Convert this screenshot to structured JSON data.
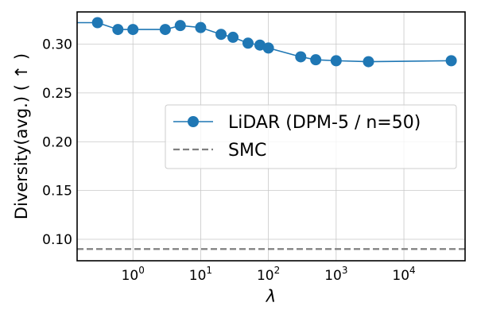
{
  "chart_data": {
    "type": "line",
    "xscale": "log",
    "xlabel": "λ",
    "ylabel": "Diversity(avg.) ( ↑ )",
    "xlim": [
      0.15,
      80000
    ],
    "ylim": [
      0.078,
      0.333
    ],
    "grid": true,
    "legend_position": "center-right",
    "x_ticks": [
      {
        "value": 1,
        "base": "10",
        "exp": "0"
      },
      {
        "value": 10,
        "base": "10",
        "exp": "1"
      },
      {
        "value": 100,
        "base": "10",
        "exp": "2"
      },
      {
        "value": 1000,
        "base": "10",
        "exp": "3"
      },
      {
        "value": 10000,
        "base": "10",
        "exp": "4"
      }
    ],
    "y_ticks": [
      "0.10",
      "0.15",
      "0.20",
      "0.25",
      "0.30"
    ],
    "series": [
      {
        "name": "LiDAR (DPM-5 / n=50)",
        "color": "#1f77b4",
        "style": "line-marker",
        "x": [
          0.1,
          0.3,
          0.6,
          1,
          3,
          5,
          10,
          20,
          30,
          50,
          75,
          100,
          300,
          500,
          1000,
          3000,
          50000
        ],
        "y": [
          0.322,
          0.322,
          0.315,
          0.315,
          0.315,
          0.319,
          0.317,
          0.31,
          0.307,
          0.301,
          0.299,
          0.296,
          0.287,
          0.284,
          0.283,
          0.282,
          0.283
        ]
      },
      {
        "name": "SMC",
        "color": "#808080",
        "style": "dashed-hline",
        "y": 0.09
      }
    ]
  }
}
